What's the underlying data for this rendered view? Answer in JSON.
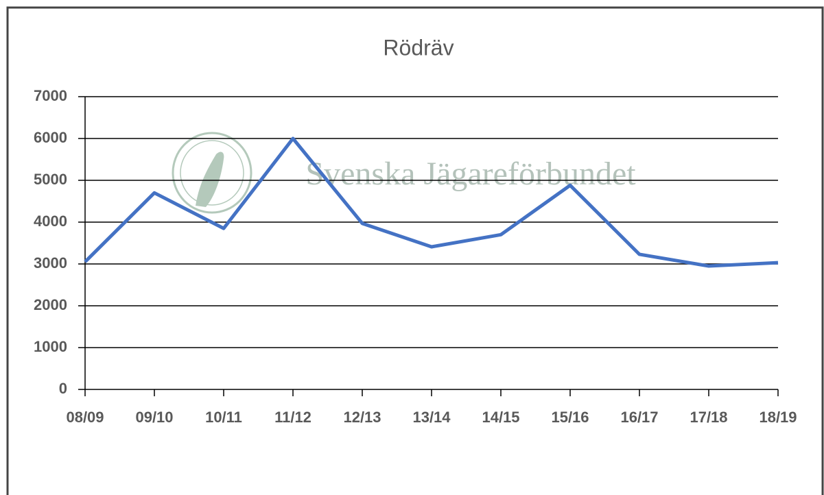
{
  "chart_data": {
    "type": "line",
    "title": "Rödräv",
    "watermark": "Svenska Jägareförbundet",
    "categories": [
      "08/09",
      "09/10",
      "10/11",
      "11/12",
      "12/13",
      "13/14",
      "14/15",
      "15/16",
      "16/17",
      "17/18",
      "18/19"
    ],
    "series": [
      {
        "name": "Rödräv",
        "color": "#4472c4",
        "values": [
          3050,
          4700,
          3850,
          6000,
          3970,
          3410,
          3700,
          4880,
          3230,
          2950,
          3030
        ]
      }
    ],
    "ylim": [
      0,
      7000
    ],
    "yticks": [
      0,
      1000,
      2000,
      3000,
      4000,
      5000,
      6000,
      7000
    ],
    "grid": true,
    "legend": false
  }
}
